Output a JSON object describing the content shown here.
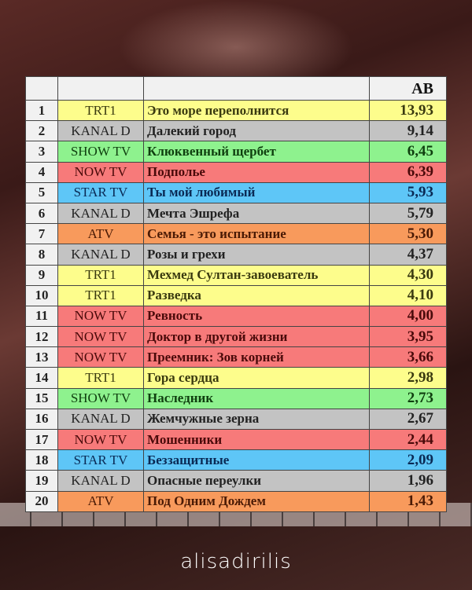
{
  "header": {
    "ab_label": "AB"
  },
  "channel_colors": {
    "TRT1": {
      "bg": "#fdfd8c",
      "fg": "#3a3a10"
    },
    "KANAL D": {
      "bg": "#c3c3c3",
      "fg": "#222222"
    },
    "SHOW TV": {
      "bg": "#8ef28e",
      "fg": "#0f3f0f"
    },
    "NOW TV": {
      "bg": "#f77a7a",
      "fg": "#4a0a0a"
    },
    "STAR TV": {
      "bg": "#5ec6f7",
      "fg": "#0a2a55"
    },
    "ATV": {
      "bg": "#f89a5c",
      "fg": "#4a1a05"
    }
  },
  "rows": [
    {
      "rank": "1",
      "channel": "TRT1",
      "title": "Это море переполнится",
      "ab": "13,93"
    },
    {
      "rank": "2",
      "channel": "KANAL D",
      "title": "Далекий город",
      "ab": "9,14"
    },
    {
      "rank": "3",
      "channel": "SHOW TV",
      "title": "Клюквенный щербет",
      "ab": "6,45"
    },
    {
      "rank": "4",
      "channel": "NOW TV",
      "title": "Подполье",
      "ab": "6,39"
    },
    {
      "rank": "5",
      "channel": "STAR TV",
      "title": "Ты мой любимый",
      "ab": "5,93"
    },
    {
      "rank": "6",
      "channel": "KANAL D",
      "title": "Мечта Эшрефа",
      "ab": "5,79"
    },
    {
      "rank": "7",
      "channel": "ATV",
      "title": "Семья - это испытание",
      "ab": "5,30"
    },
    {
      "rank": "8",
      "channel": "KANAL D",
      "title": "Розы и грехи",
      "ab": "4,37"
    },
    {
      "rank": "9",
      "channel": "TRT1",
      "title": "Мехмед Султан-завоеватель",
      "ab": "4,30"
    },
    {
      "rank": "10",
      "channel": "TRT1",
      "title": "Разведка",
      "ab": "4,10"
    },
    {
      "rank": "11",
      "channel": "NOW TV",
      "title": "Ревность",
      "ab": "4,00"
    },
    {
      "rank": "12",
      "channel": "NOW TV",
      "title": "Доктор в другой жизни",
      "ab": "3,95"
    },
    {
      "rank": "13",
      "channel": "NOW TV",
      "title": "Преемник: Зов корней",
      "ab": "3,66"
    },
    {
      "rank": "14",
      "channel": "TRT1",
      "title": "Гора сердца",
      "ab": "2,98"
    },
    {
      "rank": "15",
      "channel": "SHOW TV",
      "title": "Наследник",
      "ab": "2,73"
    },
    {
      "rank": "16",
      "channel": "KANAL D",
      "title": "Жемчужные зерна",
      "ab": "2,67"
    },
    {
      "rank": "17",
      "channel": "NOW TV",
      "title": "Мошенники",
      "ab": "2,44"
    },
    {
      "rank": "18",
      "channel": "STAR TV",
      "title": "Беззащитные",
      "ab": "2,09"
    },
    {
      "rank": "19",
      "channel": "KANAL D",
      "title": "Опасные переулки",
      "ab": "1,96"
    },
    {
      "rank": "20",
      "channel": "ATV",
      "title": "Под Одним Дождем",
      "ab": "1,43"
    }
  ],
  "watermark": "alisadirilis"
}
